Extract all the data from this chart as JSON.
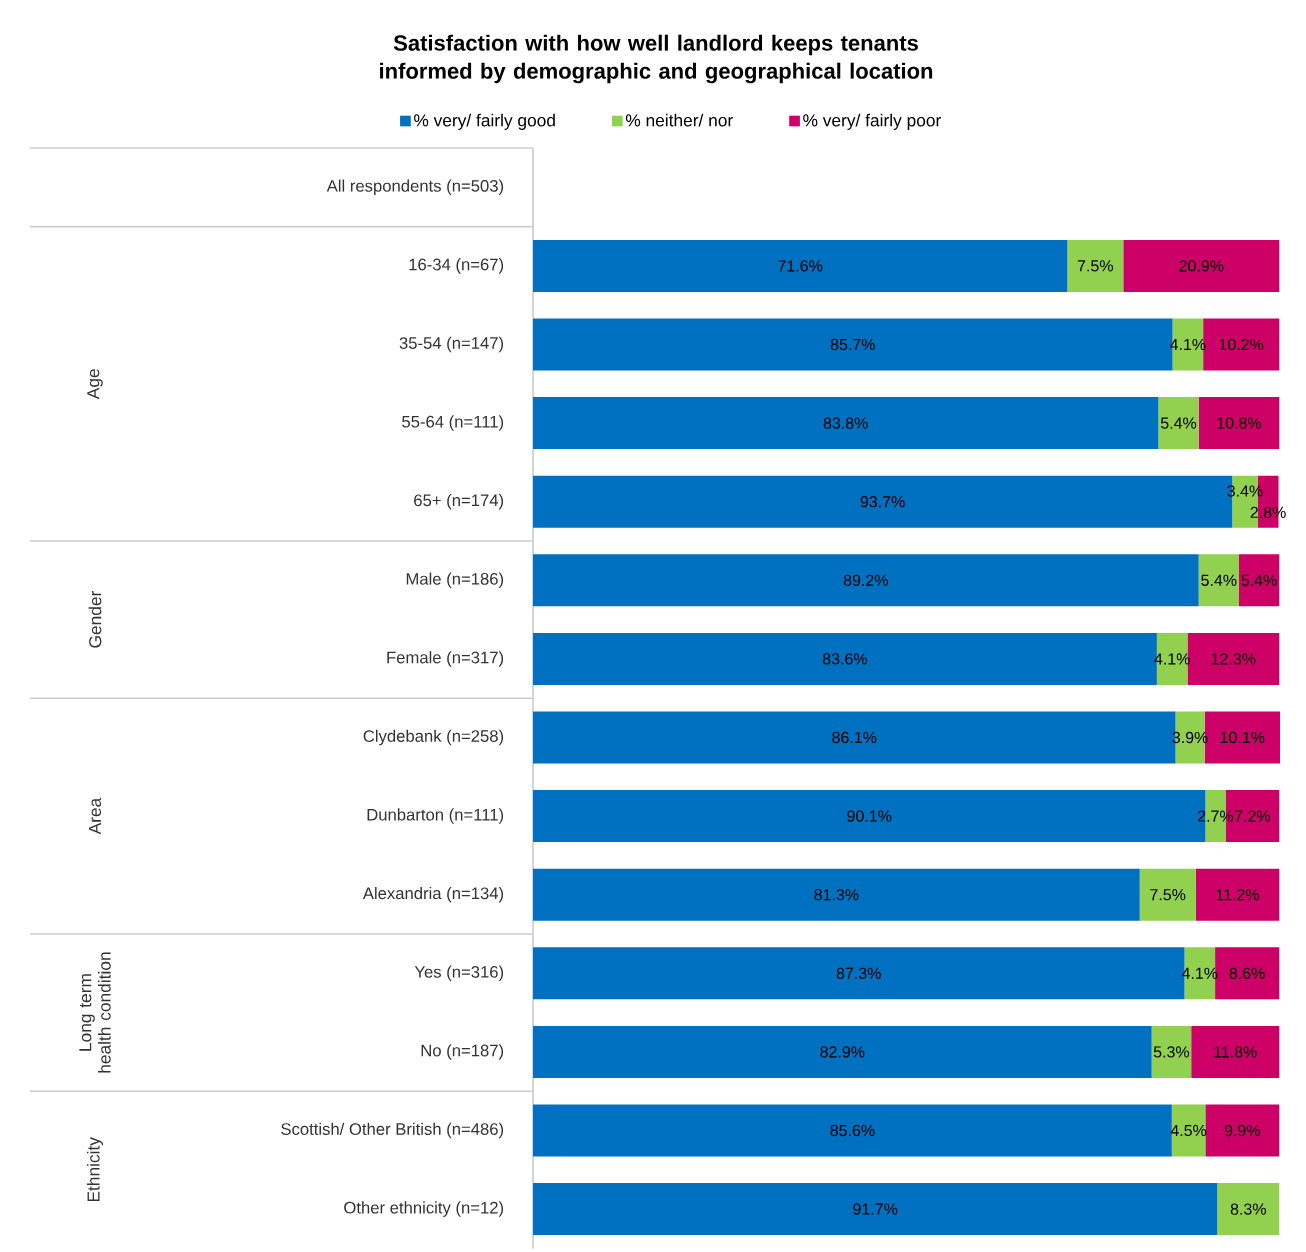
{
  "chart_data": {
    "type": "bar",
    "orientation": "horizontal",
    "stacked": true,
    "title": "Satisfaction with how well landlord keeps tenants informed by demographic and geographical location",
    "categories": [
      "All respondents (n=503)",
      "16-34 (n=67)",
      "35-54 (n=147)",
      "55-64 (n=111)",
      "65+ (n=174)",
      "Male (n=186)",
      "Female (n=317)",
      "Clydebank (n=258)",
      "Dunbarton (n=111)",
      "Alexandria (n=134)",
      "Yes (n=316)",
      "No (n=187)",
      "Scottish/ Other British (n=486)",
      "Other ethnicity (n=12)"
    ],
    "series": [
      {
        "name": "% very/ fairly good",
        "color": "#0070c0",
        "values": [
          null,
          71.6,
          85.7,
          83.8,
          93.7,
          89.2,
          83.6,
          86.1,
          90.1,
          81.3,
          87.3,
          82.9,
          85.6,
          91.7
        ],
        "value_labels": [
          null,
          "71.6%",
          "85.7%",
          "83.8%",
          "93.7%",
          "89.2%",
          "83.6%",
          "86.1%",
          "90.1%",
          "81.3%",
          "87.3%",
          "82.9%",
          "85.6%",
          "91.7%"
        ]
      },
      {
        "name": "% neither/ nor",
        "color": "#92d050",
        "values": [
          null,
          7.5,
          4.1,
          5.4,
          3.4,
          5.4,
          4.1,
          3.9,
          2.7,
          7.5,
          4.1,
          5.3,
          4.5,
          8.3
        ],
        "value_labels": [
          null,
          "7.5%",
          "4.1%",
          "5.4%",
          "3.4%",
          "5.4%",
          "4.1%",
          "3.9%",
          "2.7%",
          "7.5%",
          "4.1%",
          "5.3%",
          "4.5%",
          "8.3%"
        ]
      },
      {
        "name": "% very/ fairly poor",
        "color": "#cc0066",
        "values": [
          null,
          20.9,
          10.2,
          10.8,
          2.8,
          5.4,
          12.3,
          10.1,
          7.2,
          11.2,
          8.6,
          11.8,
          9.9,
          null
        ],
        "value_labels": [
          null,
          "20.9%",
          "10.2%",
          "10.8%",
          "2.8%",
          "5.4%",
          "12.3%",
          "10.1%",
          "7.2%",
          "11.2%",
          "8.6%",
          "11.8%",
          "9.9%",
          null
        ]
      }
    ],
    "annotations": [
      "Age",
      "Gender",
      "Area",
      "Long term health condition",
      "Ethnicity"
    ],
    "legend": "top"
  }
}
